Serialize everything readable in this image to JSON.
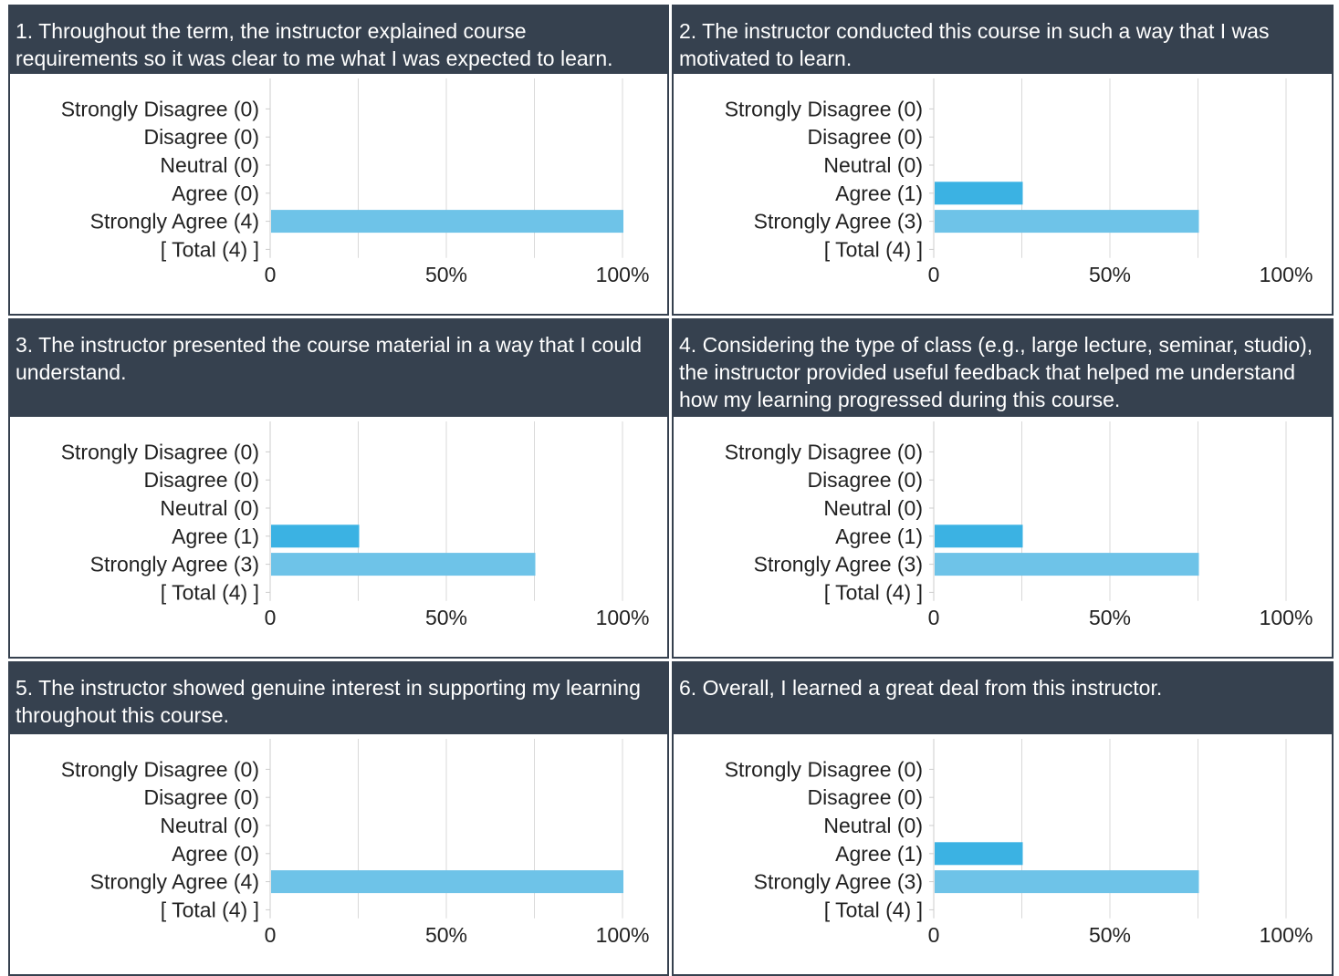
{
  "colors": {
    "header_bg": "#36414f",
    "header_text": "#ffffff",
    "bar_agree": "#3bb2e3",
    "bar_strongly_agree": "#6ec3e8",
    "grid": "#d9d9d9",
    "axis": "#cccccc",
    "text": "#222222"
  },
  "panels": [
    {
      "title": "1. Throughout the term, the instructor explained course requirements so it was clear to me what I was expected to learn."
    },
    {
      "title": "2. The instructor conducted this course in such a way that I was motivated to learn."
    },
    {
      "title": "3. The instructor presented the course material in a way that I could understand."
    },
    {
      "title": "4. Considering the type of class (e.g., large lecture, seminar, studio), the instructor provided useful feedback that helped me understand how my learning progressed during this course."
    },
    {
      "title": "5. The instructor showed genuine interest in supporting my learning throughout this course."
    },
    {
      "title": "6. Overall, I learned a great deal from this instructor."
    }
  ],
  "chart_data": [
    {
      "type": "bar",
      "orientation": "horizontal",
      "title": "1. Throughout the term, the instructor explained course requirements so it was clear to me what I was expected to learn.",
      "categories": [
        "Strongly Disagree (0)",
        "Disagree (0)",
        "Neutral (0)",
        "Agree (0)",
        "Strongly Agree (4)",
        "[ Total (4) ]"
      ],
      "counts": [
        0,
        0,
        0,
        0,
        4,
        4
      ],
      "values": [
        0,
        0,
        0,
        0,
        100,
        0
      ],
      "xlim": [
        0,
        100
      ],
      "x_ticks": [
        "0",
        "50%",
        "100%"
      ],
      "grid": true
    },
    {
      "type": "bar",
      "orientation": "horizontal",
      "title": "2. The instructor conducted this course in such a way that I was motivated to learn.",
      "categories": [
        "Strongly Disagree (0)",
        "Disagree (0)",
        "Neutral (0)",
        "Agree (1)",
        "Strongly Agree (3)",
        "[ Total (4) ]"
      ],
      "counts": [
        0,
        0,
        0,
        1,
        3,
        4
      ],
      "values": [
        0,
        0,
        0,
        25,
        75,
        0
      ],
      "xlim": [
        0,
        100
      ],
      "x_ticks": [
        "0",
        "50%",
        "100%"
      ],
      "grid": true
    },
    {
      "type": "bar",
      "orientation": "horizontal",
      "title": "3. The instructor presented the course material in a way that I could understand.",
      "categories": [
        "Strongly Disagree (0)",
        "Disagree (0)",
        "Neutral (0)",
        "Agree (1)",
        "Strongly Agree (3)",
        "[ Total (4) ]"
      ],
      "counts": [
        0,
        0,
        0,
        1,
        3,
        4
      ],
      "values": [
        0,
        0,
        0,
        25,
        75,
        0
      ],
      "xlim": [
        0,
        100
      ],
      "x_ticks": [
        "0",
        "50%",
        "100%"
      ],
      "grid": true
    },
    {
      "type": "bar",
      "orientation": "horizontal",
      "title": "4. Considering the type of class (e.g., large lecture, seminar, studio), the instructor provided useful feedback that helped me understand how my learning progressed during this course.",
      "categories": [
        "Strongly Disagree (0)",
        "Disagree (0)",
        "Neutral (0)",
        "Agree (1)",
        "Strongly Agree (3)",
        "[ Total (4) ]"
      ],
      "counts": [
        0,
        0,
        0,
        1,
        3,
        4
      ],
      "values": [
        0,
        0,
        0,
        25,
        75,
        0
      ],
      "xlim": [
        0,
        100
      ],
      "x_ticks": [
        "0",
        "50%",
        "100%"
      ],
      "grid": true
    },
    {
      "type": "bar",
      "orientation": "horizontal",
      "title": "5. The instructor showed genuine interest in supporting my learning throughout this course.",
      "categories": [
        "Strongly Disagree (0)",
        "Disagree (0)",
        "Neutral (0)",
        "Agree (0)",
        "Strongly Agree (4)",
        "[ Total (4) ]"
      ],
      "counts": [
        0,
        0,
        0,
        0,
        4,
        4
      ],
      "values": [
        0,
        0,
        0,
        0,
        100,
        0
      ],
      "xlim": [
        0,
        100
      ],
      "x_ticks": [
        "0",
        "50%",
        "100%"
      ],
      "grid": true
    },
    {
      "type": "bar",
      "orientation": "horizontal",
      "title": "6. Overall, I learned a great deal from this instructor.",
      "categories": [
        "Strongly Disagree (0)",
        "Disagree (0)",
        "Neutral (0)",
        "Agree (1)",
        "Strongly Agree (3)",
        "[ Total (4) ]"
      ],
      "counts": [
        0,
        0,
        0,
        1,
        3,
        4
      ],
      "values": [
        0,
        0,
        0,
        25,
        75,
        0
      ],
      "xlim": [
        0,
        100
      ],
      "x_ticks": [
        "0",
        "50%",
        "100%"
      ],
      "grid": true
    }
  ]
}
